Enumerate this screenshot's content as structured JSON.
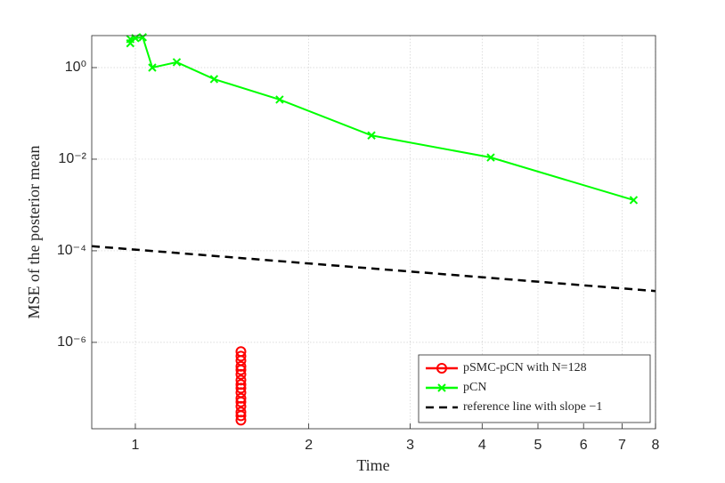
{
  "chart_data": {
    "type": "line",
    "xlabel": "Time",
    "ylabel": "MSE of the posterior mean",
    "xscale": "log",
    "yscale": "log",
    "xlim": [
      0.84,
      8
    ],
    "ylim": [
      1.3e-08,
      5
    ],
    "xticks": [
      1,
      2,
      3,
      4,
      5,
      6,
      7,
      8
    ],
    "yticks": [
      {
        "value": 1e-06,
        "label": "10⁻⁶"
      },
      {
        "value": 0.0001,
        "label": "10⁻⁴"
      },
      {
        "value": 0.01,
        "label": "10⁻²"
      },
      {
        "value": 1,
        "label": "10⁰"
      }
    ],
    "grid": true,
    "legend_position": "lower right",
    "series": [
      {
        "name": "pSMC-pCN with N=128",
        "color": "#ff0000",
        "marker": "o",
        "linestyle": "none",
        "x": [
          1.525,
          1.525,
          1.525,
          1.525,
          1.525,
          1.525,
          1.525,
          1.525,
          1.525,
          1.525,
          1.525,
          1.525,
          1.525,
          1.525,
          1.525,
          1.525
        ],
        "values": [
          6.3e-07,
          5e-07,
          4e-07,
          3e-07,
          2.5e-07,
          2e-07,
          1.5e-07,
          1.2e-07,
          1e-07,
          8e-08,
          6e-08,
          5e-08,
          4e-08,
          3e-08,
          2.5e-08,
          2e-08
        ]
      },
      {
        "name": "pCN",
        "color": "#00ff00",
        "marker": "x",
        "linestyle": "solid",
        "x": [
          0.98,
          0.98,
          1.0,
          1.03,
          1.07,
          1.18,
          1.37,
          1.78,
          2.57,
          4.14,
          7.33
        ],
        "values": [
          3.4,
          4.2,
          4.4,
          4.6,
          1.0,
          1.31,
          0.56,
          0.2,
          0.033,
          0.0109,
          0.00128
        ]
      },
      {
        "name": "reference line with slope −1",
        "color": "#000000",
        "marker": "none",
        "linestyle": "dashed",
        "x": [
          0.84,
          8
        ],
        "values": [
          0.000126,
          1.32e-05
        ]
      }
    ]
  }
}
